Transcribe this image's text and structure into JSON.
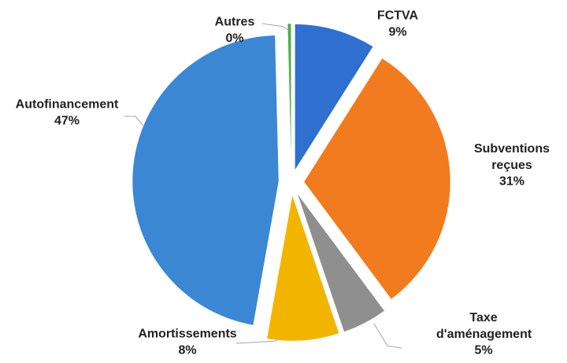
{
  "chart_data": {
    "type": "pie",
    "categories": [
      "FCTVA",
      "Subventions reçues",
      "Taxe d'aménagement",
      "Amortissements",
      "Autofinancement",
      "Autres"
    ],
    "values": [
      9,
      31,
      5,
      8,
      47,
      0.4
    ],
    "value_labels": [
      "9%",
      "31%",
      "5%",
      "8%",
      "47%",
      "0%"
    ],
    "colors": [
      "#2f6fd0",
      "#f27b1f",
      "#8f8f8f",
      "#f1b500",
      "#3b87d4",
      "#4cae4c"
    ]
  }
}
